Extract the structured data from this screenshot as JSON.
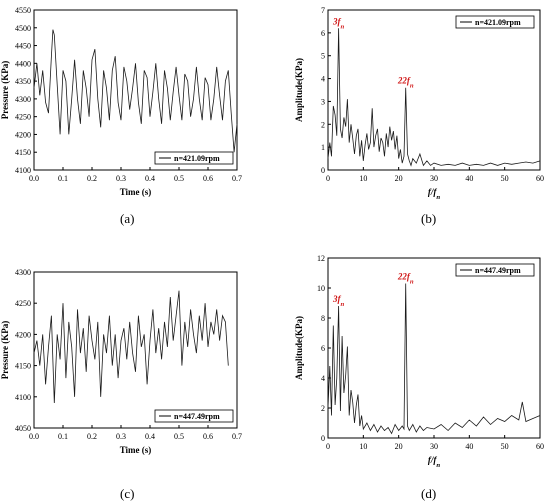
{
  "panel_labels": [
    "(a)",
    "(b)",
    "(c)",
    "(d)"
  ],
  "chart_data": [
    {
      "id": "a",
      "type": "line",
      "xlabel": "Time (s)",
      "ylabel": "Pressure (KPa)",
      "xlim": [
        0.0,
        0.7
      ],
      "ylim": [
        4100,
        4550
      ],
      "xticks": [
        0.0,
        0.1,
        0.2,
        0.3,
        0.4,
        0.5,
        0.6,
        0.7
      ],
      "xtick_labels": [
        "0.0",
        "0.1",
        "0.2",
        "0.3",
        "0.4",
        "0.5",
        "0.6",
        "0.7"
      ],
      "yticks": [
        4100,
        4150,
        4200,
        4250,
        4300,
        4350,
        4400,
        4450,
        4500,
        4550
      ],
      "ytick_labels": [
        "4100",
        "4150",
        "4200",
        "4250",
        "4300",
        "4350",
        "4400",
        "4450",
        "4500",
        "4550"
      ],
      "legend": "n=421.09rpm",
      "legend_position": "bottom-right",
      "series": [
        {
          "x": [
            0.0,
            0.01,
            0.02,
            0.03,
            0.04,
            0.05,
            0.06,
            0.065,
            0.07,
            0.08,
            0.09,
            0.1,
            0.11,
            0.12,
            0.13,
            0.14,
            0.15,
            0.16,
            0.17,
            0.18,
            0.19,
            0.2,
            0.21,
            0.22,
            0.23,
            0.24,
            0.25,
            0.26,
            0.27,
            0.28,
            0.29,
            0.3,
            0.31,
            0.32,
            0.33,
            0.34,
            0.35,
            0.36,
            0.37,
            0.38,
            0.39,
            0.4,
            0.41,
            0.42,
            0.43,
            0.44,
            0.45,
            0.46,
            0.47,
            0.48,
            0.49,
            0.5,
            0.51,
            0.52,
            0.53,
            0.54,
            0.55,
            0.56,
            0.57,
            0.58,
            0.59,
            0.6,
            0.61,
            0.62,
            0.63,
            0.64,
            0.65,
            0.66,
            0.67,
            0.68,
            0.69,
            0.7
          ],
          "y": [
            4330,
            4400,
            4310,
            4380,
            4290,
            4260,
            4420,
            4495,
            4480,
            4340,
            4200,
            4380,
            4350,
            4200,
            4300,
            4410,
            4300,
            4230,
            4380,
            4330,
            4250,
            4410,
            4440,
            4300,
            4220,
            4380,
            4330,
            4240,
            4380,
            4420,
            4290,
            4240,
            4390,
            4350,
            4270,
            4330,
            4400,
            4290,
            4230,
            4380,
            4360,
            4250,
            4320,
            4400,
            4300,
            4230,
            4380,
            4330,
            4240,
            4320,
            4390,
            4310,
            4240,
            4370,
            4350,
            4250,
            4300,
            4390,
            4300,
            4240,
            4360,
            4340,
            4240,
            4300,
            4390,
            4310,
            4240,
            4350,
            4380,
            4260,
            4150,
            4230
          ]
        }
      ]
    },
    {
      "id": "b",
      "type": "line",
      "xlabel": "f/fn",
      "ylabel": "Amplitude(KPa)",
      "xlim": [
        0,
        60
      ],
      "ylim": [
        0,
        7
      ],
      "xticks": [
        0,
        10,
        20,
        30,
        40,
        50,
        60
      ],
      "xtick_labels": [
        "0",
        "10",
        "20",
        "30",
        "40",
        "50",
        "60"
      ],
      "yticks": [
        0,
        1,
        2,
        3,
        4,
        5,
        6,
        7
      ],
      "ytick_labels": [
        "0",
        "1",
        "2",
        "3",
        "4",
        "5",
        "6",
        "7"
      ],
      "legend": "n=421.09rpm",
      "legend_position": "top-right",
      "annotations": [
        {
          "label": "3fn",
          "x": 3,
          "y": 6.2
        },
        {
          "label": "22fn",
          "x": 22,
          "y": 3.6
        }
      ],
      "series": [
        {
          "x": [
            0,
            0.5,
            1,
            1.5,
            2,
            2.5,
            3,
            3.5,
            4,
            4.5,
            5,
            5.5,
            6,
            6.5,
            7,
            7.5,
            8,
            8.5,
            9,
            9.5,
            10,
            10.5,
            11,
            11.5,
            12,
            12.5,
            13,
            13.5,
            14,
            14.5,
            15,
            15.5,
            16,
            16.5,
            17,
            17.5,
            18,
            18.5,
            19,
            19.5,
            20,
            20.5,
            21,
            21.5,
            22,
            22.5,
            23,
            23.5,
            24,
            25,
            26,
            27,
            28,
            29,
            30,
            32,
            34,
            36,
            38,
            40,
            42,
            44,
            46,
            48,
            50,
            52,
            54,
            56,
            58,
            60
          ],
          "y": [
            0.5,
            1.2,
            0.6,
            2.8,
            2.4,
            1.5,
            6.2,
            1.8,
            1.4,
            2.3,
            1.9,
            3.1,
            1.2,
            2.0,
            1.4,
            0.7,
            1.5,
            1.8,
            0.6,
            1.3,
            0.4,
            1.1,
            1.6,
            0.9,
            1.2,
            2.7,
            1.0,
            1.5,
            1.8,
            0.8,
            1.4,
            1.2,
            0.6,
            1.6,
            1.0,
            1.9,
            1.3,
            1.7,
            0.9,
            1.5,
            0.5,
            0.9,
            0.3,
            0.6,
            3.6,
            0.7,
            0.4,
            0.2,
            0.5,
            0.3,
            0.7,
            0.2,
            0.4,
            0.2,
            0.3,
            0.2,
            0.25,
            0.2,
            0.3,
            0.2,
            0.25,
            0.2,
            0.3,
            0.2,
            0.3,
            0.25,
            0.3,
            0.35,
            0.3,
            0.4
          ]
        }
      ]
    },
    {
      "id": "c",
      "type": "line",
      "xlabel": "Time (s)",
      "ylabel": "Pressure (KPa)",
      "xlim": [
        0.0,
        0.7
      ],
      "ylim": [
        4050,
        4300
      ],
      "xticks": [
        0.0,
        0.1,
        0.2,
        0.3,
        0.4,
        0.5,
        0.6,
        0.7
      ],
      "xtick_labels": [
        "0.0",
        "0.1",
        "0.2",
        "0.3",
        "0.4",
        "0.5",
        "0.6",
        "0.7"
      ],
      "yticks": [
        4050,
        4100,
        4150,
        4200,
        4250,
        4300
      ],
      "ytick_labels": [
        "4050",
        "4100",
        "4150",
        "4200",
        "4250",
        "4300"
      ],
      "legend": "n=447.49rpm",
      "legend_position": "bottom-right",
      "series": [
        {
          "x": [
            0.0,
            0.01,
            0.02,
            0.03,
            0.04,
            0.05,
            0.06,
            0.07,
            0.08,
            0.09,
            0.1,
            0.11,
            0.12,
            0.13,
            0.14,
            0.15,
            0.16,
            0.17,
            0.18,
            0.19,
            0.2,
            0.21,
            0.22,
            0.23,
            0.24,
            0.25,
            0.26,
            0.27,
            0.28,
            0.29,
            0.3,
            0.31,
            0.32,
            0.33,
            0.34,
            0.35,
            0.36,
            0.37,
            0.38,
            0.39,
            0.4,
            0.41,
            0.42,
            0.43,
            0.44,
            0.45,
            0.46,
            0.47,
            0.48,
            0.49,
            0.5,
            0.51,
            0.52,
            0.53,
            0.54,
            0.55,
            0.56,
            0.57,
            0.58,
            0.59,
            0.6,
            0.61,
            0.62,
            0.63,
            0.64,
            0.65,
            0.66,
            0.67
          ],
          "y": [
            4170,
            4190,
            4150,
            4200,
            4120,
            4180,
            4230,
            4090,
            4200,
            4160,
            4250,
            4130,
            4220,
            4180,
            4100,
            4240,
            4170,
            4210,
            4140,
            4230,
            4190,
            4160,
            4220,
            4100,
            4200,
            4170,
            4230,
            4150,
            4200,
            4130,
            4190,
            4210,
            4160,
            4220,
            4170,
            4140,
            4230,
            4180,
            4200,
            4120,
            4190,
            4240,
            4170,
            4210,
            4160,
            4220,
            4180,
            4260,
            4190,
            4230,
            4270,
            4150,
            4220,
            4180,
            4240,
            4200,
            4170,
            4230,
            4190,
            4250,
            4180,
            4220,
            4200,
            4240,
            4190,
            4230,
            4220,
            4150
          ]
        }
      ]
    },
    {
      "id": "d",
      "type": "line",
      "xlabel": "f/fn",
      "ylabel": "Amplitude(KPa)",
      "xlim": [
        0,
        60
      ],
      "ylim": [
        0,
        12
      ],
      "xticks": [
        0,
        10,
        20,
        30,
        40,
        50,
        60
      ],
      "xtick_labels": [
        "0",
        "10",
        "20",
        "30",
        "40",
        "50",
        "60"
      ],
      "yticks": [
        0,
        2,
        4,
        6,
        8,
        10,
        12
      ],
      "ytick_labels": [
        "0",
        "2",
        "4",
        "6",
        "8",
        "10",
        "12"
      ],
      "legend": "n=447.49rpm",
      "legend_position": "top-right",
      "annotations": [
        {
          "label": "3fn",
          "x": 3,
          "y": 8.8
        },
        {
          "label": "22fn",
          "x": 22,
          "y": 10.3
        }
      ],
      "series": [
        {
          "x": [
            0,
            0.5,
            1,
            1.5,
            2,
            2.5,
            3,
            3.5,
            4,
            4.5,
            5,
            5.5,
            6,
            6.5,
            7,
            7.5,
            8,
            8.5,
            9,
            9.5,
            10,
            11,
            12,
            13,
            14,
            15,
            16,
            17,
            18,
            19,
            20,
            21,
            21.5,
            22,
            22.5,
            23,
            24,
            25,
            26,
            27,
            28,
            30,
            32,
            34,
            36,
            38,
            40,
            42,
            44,
            46,
            48,
            50,
            52,
            54,
            55,
            56,
            58,
            60
          ],
          "y": [
            2.0,
            4.8,
            1.5,
            7.5,
            2.2,
            4.0,
            8.8,
            1.8,
            6.8,
            3.0,
            4.2,
            6.1,
            1.5,
            3.2,
            2.4,
            1.0,
            2.2,
            2.9,
            0.8,
            1.5,
            0.6,
            1.0,
            0.5,
            0.9,
            0.4,
            0.8,
            0.5,
            0.7,
            0.3,
            0.9,
            0.5,
            0.8,
            0.6,
            10.3,
            0.8,
            0.5,
            0.9,
            0.4,
            0.8,
            0.5,
            0.7,
            0.6,
            0.9,
            0.5,
            1.0,
            0.7,
            1.2,
            0.8,
            1.4,
            0.9,
            1.3,
            1.1,
            1.5,
            1.2,
            2.4,
            1.1,
            1.3,
            1.5
          ]
        }
      ]
    }
  ]
}
